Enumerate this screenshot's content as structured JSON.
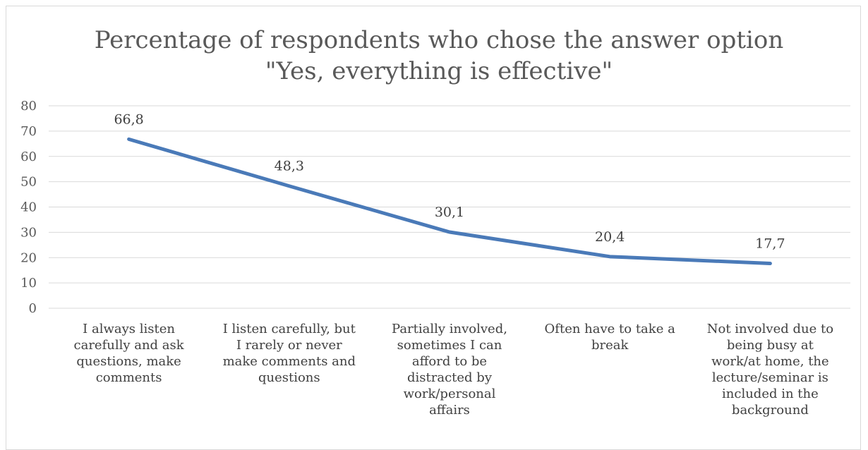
{
  "chart_data": {
    "type": "line",
    "title_lines": [
      "Percentage of respondents who chose the answer option",
      "\"Yes, everything is effective\""
    ],
    "categories": [
      "I always listen carefully and ask questions, make comments",
      "I listen carefully, but I rarely or never make comments and questions",
      "Partially involved, sometimes I can afford to be distracted by work/personal affairs",
      "Often have to take a break",
      "Not involved due to being busy at work/at home, the lecture/seminar is included in the background"
    ],
    "values": [
      66.8,
      48.3,
      30.1,
      20.4,
      17.7
    ],
    "data_labels": [
      "66,8",
      "48,3",
      "30,1",
      "20,4",
      "17,7"
    ],
    "ylim": [
      0,
      80
    ],
    "yticks": [
      "0",
      "10",
      "20",
      "30",
      "40",
      "50",
      "60",
      "70",
      "80"
    ],
    "grid": true,
    "line_color": "#4a7ab8",
    "legend": "none"
  }
}
